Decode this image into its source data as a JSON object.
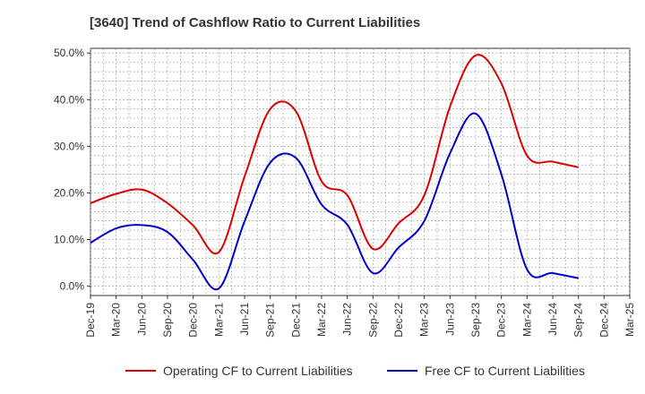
{
  "chart_data": {
    "type": "line",
    "title": "[3640]  Trend of Cashflow Ratio to Current Liabilities",
    "xlabel": "",
    "ylabel": "",
    "x": [
      "Dec-19",
      "Mar-20",
      "Jun-20",
      "Sep-20",
      "Dec-20",
      "Mar-21",
      "Jun-21",
      "Sep-21",
      "Dec-21",
      "Mar-22",
      "Jun-22",
      "Sep-22",
      "Dec-22",
      "Mar-23",
      "Jun-23",
      "Sep-23",
      "Dec-23",
      "Mar-24",
      "Jun-24",
      "Sep-24",
      "Dec-24",
      "Mar-25"
    ],
    "ylim": [
      -2,
      51
    ],
    "yticks": [
      0,
      10,
      20,
      30,
      40,
      50
    ],
    "ytick_labels": [
      "0.0%",
      "10.0%",
      "20.0%",
      "30.0%",
      "40.0%",
      "50.0%"
    ],
    "grid": true,
    "legend_position": "bottom",
    "series": [
      {
        "name": "Operating CF to Current Liabilities",
        "color": "#dd0000",
        "values": [
          17.8,
          19.8,
          20.7,
          17.8,
          13.0,
          7.3,
          23.5,
          38.0,
          37.5,
          22.5,
          19.5,
          8.0,
          13.5,
          19.5,
          38.5,
          49.5,
          43.5,
          28.0,
          26.7,
          25.5,
          null,
          null
        ]
      },
      {
        "name": "Free CF to Current Liabilities",
        "color": "#0000cc",
        "values": [
          9.3,
          12.4,
          13.1,
          11.6,
          5.6,
          -0.5,
          13.9,
          26.5,
          27.5,
          17.5,
          13.2,
          2.8,
          8.3,
          14.0,
          28.5,
          37.0,
          24.0,
          3.6,
          2.8,
          1.7,
          null,
          null
        ]
      }
    ]
  }
}
